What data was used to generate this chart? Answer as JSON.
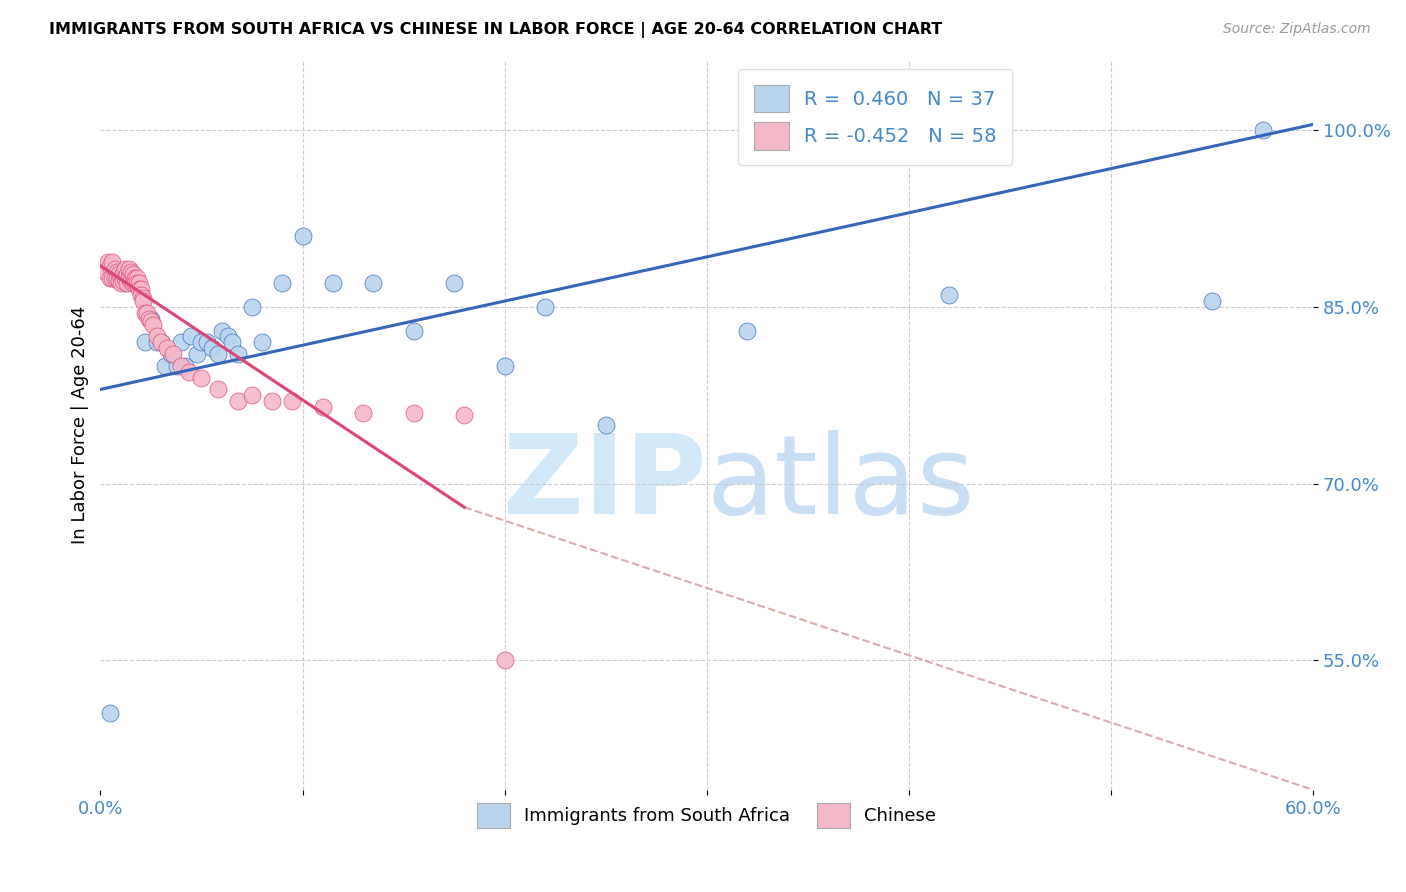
{
  "title": "IMMIGRANTS FROM SOUTH AFRICA VS CHINESE IN LABOR FORCE | AGE 20-64 CORRELATION CHART",
  "source": "Source: ZipAtlas.com",
  "ylabel": "In Labor Force | Age 20-64",
  "y_ticks": [
    0.55,
    0.7,
    0.85,
    1.0
  ],
  "y_tick_labels": [
    "55.0%",
    "70.0%",
    "85.0%",
    "100.0%"
  ],
  "xlim": [
    0.0,
    0.6
  ],
  "ylim": [
    0.44,
    1.06
  ],
  "legend_entries": [
    {
      "label": "R =  0.460   N = 37",
      "color": "#b8d4ee"
    },
    {
      "label": "R = -0.452   N = 58",
      "color": "#f4b8c8"
    }
  ],
  "legend_bottom": [
    {
      "label": "Immigrants from South Africa",
      "color": "#b8d4ee"
    },
    {
      "label": "Chinese",
      "color": "#f4b8c8"
    }
  ],
  "blue_line_color": "#3366bb",
  "pink_line_color": "#dd4477",
  "pink_dashed_color": "#ddaaaa",
  "watermark_zip_color": "#d0e8f8",
  "watermark_atlas_color": "#c8dff5",
  "background_color": "#ffffff",
  "title_fontsize": 11,
  "axis_label_color": "#4488cc",
  "blue_line_endpoints": [
    0.0,
    0.78,
    0.6,
    1.005
  ],
  "pink_solid_endpoints": [
    0.0,
    0.885,
    0.18,
    0.68
  ],
  "pink_dashed_endpoints": [
    0.18,
    0.68,
    0.6,
    0.44
  ],
  "blue_scatter": {
    "x": [
      0.005,
      0.012,
      0.016,
      0.022,
      0.025,
      0.028,
      0.03,
      0.032,
      0.035,
      0.038,
      0.04,
      0.042,
      0.045,
      0.048,
      0.05,
      0.053,
      0.055,
      0.058,
      0.06,
      0.063,
      0.065,
      0.068,
      0.075,
      0.08,
      0.09,
      0.1,
      0.115,
      0.135,
      0.155,
      0.175,
      0.2,
      0.22,
      0.25,
      0.32,
      0.42,
      0.55,
      0.575
    ],
    "y": [
      0.505,
      0.87,
      0.87,
      0.82,
      0.84,
      0.82,
      0.82,
      0.8,
      0.81,
      0.8,
      0.82,
      0.8,
      0.825,
      0.81,
      0.82,
      0.82,
      0.815,
      0.81,
      0.83,
      0.825,
      0.82,
      0.81,
      0.85,
      0.82,
      0.87,
      0.91,
      0.87,
      0.87,
      0.83,
      0.87,
      0.8,
      0.85,
      0.75,
      0.83,
      0.86,
      0.855,
      1.0
    ]
  },
  "pink_scatter": {
    "x": [
      0.003,
      0.004,
      0.005,
      0.005,
      0.006,
      0.006,
      0.007,
      0.007,
      0.008,
      0.008,
      0.009,
      0.009,
      0.01,
      0.01,
      0.011,
      0.011,
      0.012,
      0.012,
      0.013,
      0.013,
      0.014,
      0.014,
      0.015,
      0.015,
      0.016,
      0.016,
      0.017,
      0.017,
      0.018,
      0.018,
      0.019,
      0.019,
      0.02,
      0.02,
      0.021,
      0.021,
      0.022,
      0.023,
      0.024,
      0.025,
      0.026,
      0.028,
      0.03,
      0.033,
      0.036,
      0.04,
      0.044,
      0.05,
      0.058,
      0.068,
      0.075,
      0.085,
      0.095,
      0.11,
      0.13,
      0.155,
      0.18,
      0.2
    ],
    "y": [
      0.88,
      0.888,
      0.885,
      0.875,
      0.888,
      0.875,
      0.882,
      0.875,
      0.88,
      0.875,
      0.878,
      0.872,
      0.875,
      0.87,
      0.878,
      0.872,
      0.882,
      0.875,
      0.878,
      0.87,
      0.882,
      0.875,
      0.88,
      0.872,
      0.878,
      0.87,
      0.875,
      0.87,
      0.875,
      0.87,
      0.87,
      0.865,
      0.865,
      0.86,
      0.858,
      0.855,
      0.845,
      0.845,
      0.84,
      0.838,
      0.835,
      0.825,
      0.82,
      0.815,
      0.81,
      0.8,
      0.795,
      0.79,
      0.78,
      0.77,
      0.775,
      0.77,
      0.77,
      0.765,
      0.76,
      0.76,
      0.758,
      0.55
    ]
  }
}
